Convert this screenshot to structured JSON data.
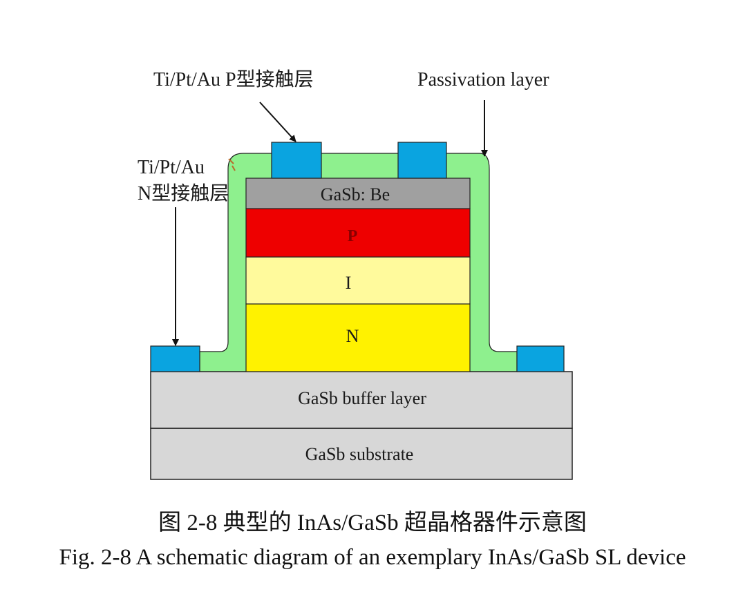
{
  "diagram": {
    "labels": {
      "p_contact": "Ti/Pt/Au P型接触层",
      "passivation": "Passivation layer",
      "n_contact_line1": "Ti/Pt/Au",
      "n_contact_line2": "N型接触层"
    },
    "layers": {
      "cap": "GaSb: Be",
      "p": "P",
      "i": "I",
      "n": "N",
      "buffer": "GaSb buffer layer",
      "substrate": "GaSb substrate"
    },
    "colors": {
      "passivation": "#8ef08e",
      "contact": "#0aa4e0",
      "cap": "#a0a0a0",
      "p_layer": "#ee0000",
      "i_layer": "#fffa9c",
      "n_layer": "#fff200",
      "base_layers": "#d7d7d7",
      "p_text": "#8a0000"
    }
  },
  "caption": {
    "chinese": "图 2-8  典型的 InAs/GaSb 超晶格器件示意图",
    "english": "Fig. 2-8 A schematic diagram of an exemplary InAs/GaSb SL device"
  }
}
